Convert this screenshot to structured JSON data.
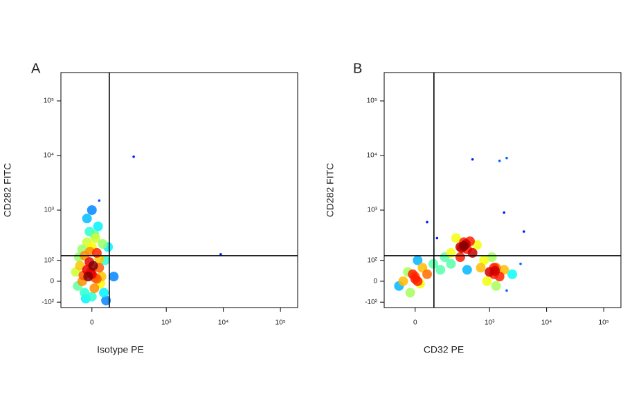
{
  "chart_data": [
    {
      "type": "scatter",
      "title": "A",
      "x_label": "Isotype PE",
      "y_label": "CD282 FITC",
      "scale": "biexponential",
      "xlim": [
        -160,
        200000
      ],
      "ylim": [
        -135,
        330000
      ],
      "xticks": [
        0,
        {
          "value": 1000,
          "label": "10³"
        },
        {
          "value": 10000,
          "label": "10⁴"
        },
        {
          "value": 100000,
          "label": "10⁵"
        }
      ],
      "yticks": [
        {
          "value": -100,
          "label": "-10²"
        },
        0,
        {
          "value": 100,
          "label": "10²"
        },
        {
          "value": 1000,
          "label": "10³"
        },
        {
          "value": 10000,
          "label": "10⁴"
        },
        {
          "value": 100000,
          "label": "10⁵"
        }
      ],
      "gate_x": 76,
      "gate_y": 130,
      "x": [
        0,
        -20,
        20,
        -40,
        30,
        10,
        -10,
        -30,
        20,
        0,
        -20,
        30,
        -50,
        40,
        -60,
        50,
        0,
        -30,
        15,
        -10,
        25,
        -40,
        45,
        -55,
        55,
        5,
        -15,
        35,
        -25,
        10,
        0,
        30,
        -20,
        60,
        -70,
        70,
        260,
        9000,
        100,
        -5,
        12,
        -35,
        -8
      ],
      "y": [
        30,
        50,
        10,
        0,
        60,
        -30,
        90,
        130,
        150,
        200,
        250,
        110,
        70,
        20,
        -20,
        -50,
        -70,
        -50,
        300,
        400,
        500,
        180,
        230,
        120,
        100,
        70,
        20,
        -10,
        -80,
        350,
        1000,
        1500,
        700,
        -90,
        40,
        200,
        9500,
        140,
        20,
        40,
        15,
        25,
        160
      ]
    },
    {
      "type": "scatter",
      "title": "B",
      "x_label": "CD32 PE",
      "y_label": "CD282 FITC",
      "scale": "biexponential",
      "xlim": [
        -160,
        200000
      ],
      "ylim": [
        -135,
        330000
      ],
      "xticks": [
        0,
        {
          "value": 1000,
          "label": "10³"
        },
        {
          "value": 10000,
          "label": "10⁴"
        },
        {
          "value": 100000,
          "label": "10⁵"
        }
      ],
      "yticks": [
        {
          "value": -100,
          "label": "-10²"
        },
        0,
        {
          "value": 100,
          "label": "10²"
        },
        {
          "value": 1000,
          "label": "10³"
        },
        {
          "value": 10000,
          "label": "10⁴"
        },
        {
          "value": 100000,
          "label": "10⁵"
        }
      ],
      "gate_x": 83,
      "gate_y": 130,
      "x": [
        0,
        -30,
        20,
        -50,
        30,
        -20,
        10,
        50,
        -70,
        80,
        150,
        200,
        300,
        350,
        400,
        250,
        450,
        500,
        600,
        300,
        200,
        120,
        800,
        1000,
        1200,
        1500,
        1300,
        900,
        1800,
        2500,
        2000,
        1100,
        700,
        400,
        3500,
        4000,
        100,
        50,
        1800,
        1500,
        500,
        2000,
        0,
        -10,
        10,
        350,
        320,
        380,
        1250,
        1300,
        1200
      ],
      "y": [
        20,
        40,
        -10,
        0,
        60,
        -50,
        100,
        30,
        -20,
        80,
        120,
        150,
        200,
        250,
        180,
        300,
        260,
        150,
        220,
        120,
        80,
        50,
        100,
        40,
        60,
        20,
        -20,
        0,
        50,
        30,
        -40,
        120,
        60,
        50,
        80,
        400,
        300,
        600,
        900,
        8000,
        8500,
        9000,
        10,
        30,
        0,
        210,
        190,
        230,
        45,
        60,
        30
      ]
    }
  ]
}
